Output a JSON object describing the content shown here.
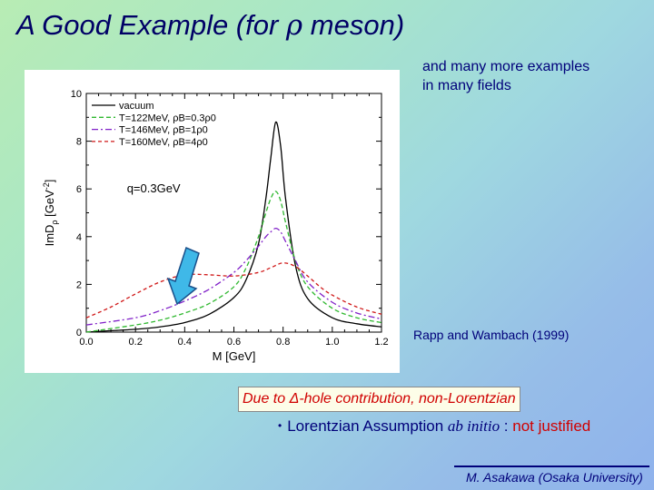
{
  "slide": {
    "title_pre": "A Good Example (for ",
    "title_sym": "ρ",
    "title_post": " meson)",
    "note_line1": "and many more examples",
    "note_line2": "in many fields",
    "citation": "Rapp and Wambach (1999)",
    "highlight_pre": "Due to ",
    "highlight_sym": "Δ",
    "highlight_post": "-hole contribution, non-Lorentzian",
    "bullet_char": "•",
    "bullet_pre": "Lorentzian Assumption ",
    "bullet_abinitio": "ab initio",
    "bullet_mid": " : ",
    "bullet_red": "not justified",
    "footer": "M. Asakawa (Osaka University)",
    "arrow_color": "#3fb8e8"
  },
  "chart_data": {
    "type": "line",
    "xlabel": "M [GeV]",
    "ylabel": "ImD",
    "ylabel_sub": "ρ",
    "ylabel_unit": "[GeV",
    "ylabel_unit_sup": "-2",
    "ylabel_unit_close": "]",
    "xlim": [
      0.0,
      1.2
    ],
    "ylim": [
      0,
      10
    ],
    "xticks": [
      "0.0",
      "0.2",
      "0.4",
      "0.6",
      "0.8",
      "1.0",
      "1.2"
    ],
    "yticks": [
      "0",
      "2",
      "4",
      "6",
      "8",
      "10"
    ],
    "annotation": "q=0.3GeV",
    "grid": false,
    "legend_position": "top-left",
    "series": [
      {
        "name": "vacuum",
        "color": "#000000",
        "dash": "",
        "x": [
          0.0,
          0.2,
          0.3,
          0.4,
          0.5,
          0.6,
          0.65,
          0.7,
          0.73,
          0.75,
          0.77,
          0.79,
          0.81,
          0.85,
          0.9,
          1.0,
          1.1,
          1.2
        ],
        "y": [
          0.0,
          0.12,
          0.22,
          0.4,
          0.75,
          1.45,
          2.2,
          3.7,
          5.6,
          7.3,
          8.8,
          7.8,
          5.6,
          2.8,
          1.4,
          0.6,
          0.35,
          0.22
        ]
      },
      {
        "name": "T=122MeV, ρB=0.3ρ0",
        "color": "#2fb82f",
        "dash": "5,3",
        "x": [
          0.0,
          0.2,
          0.3,
          0.4,
          0.5,
          0.6,
          0.65,
          0.7,
          0.73,
          0.75,
          0.77,
          0.79,
          0.81,
          0.85,
          0.9,
          1.0,
          1.1,
          1.2
        ],
        "y": [
          0.0,
          0.3,
          0.5,
          0.8,
          1.2,
          1.9,
          2.7,
          4.0,
          5.0,
          5.6,
          5.9,
          5.5,
          4.6,
          3.0,
          1.9,
          1.0,
          0.6,
          0.4
        ]
      },
      {
        "name": "T=146MeV, ρB=1ρ0",
        "color": "#8020c8",
        "dash": "7,3,2,3",
        "x": [
          0.0,
          0.2,
          0.3,
          0.4,
          0.5,
          0.6,
          0.65,
          0.7,
          0.73,
          0.75,
          0.77,
          0.79,
          0.81,
          0.85,
          0.9,
          1.0,
          1.1,
          1.2
        ],
        "y": [
          0.3,
          0.6,
          0.9,
          1.3,
          1.8,
          2.5,
          3.0,
          3.6,
          4.0,
          4.2,
          4.35,
          4.2,
          3.8,
          3.0,
          2.1,
          1.25,
          0.8,
          0.55
        ]
      },
      {
        "name": "T=160MeV, ρB=4ρ0",
        "color": "#d01818",
        "dash": "4,3",
        "x": [
          0.0,
          0.1,
          0.2,
          0.3,
          0.4,
          0.5,
          0.6,
          0.7,
          0.75,
          0.8,
          0.85,
          0.9,
          0.95,
          1.0,
          1.1,
          1.2
        ],
        "y": [
          0.6,
          1.05,
          1.6,
          2.1,
          2.4,
          2.4,
          2.35,
          2.5,
          2.7,
          2.9,
          2.75,
          2.35,
          1.9,
          1.55,
          1.05,
          0.75
        ]
      }
    ]
  }
}
